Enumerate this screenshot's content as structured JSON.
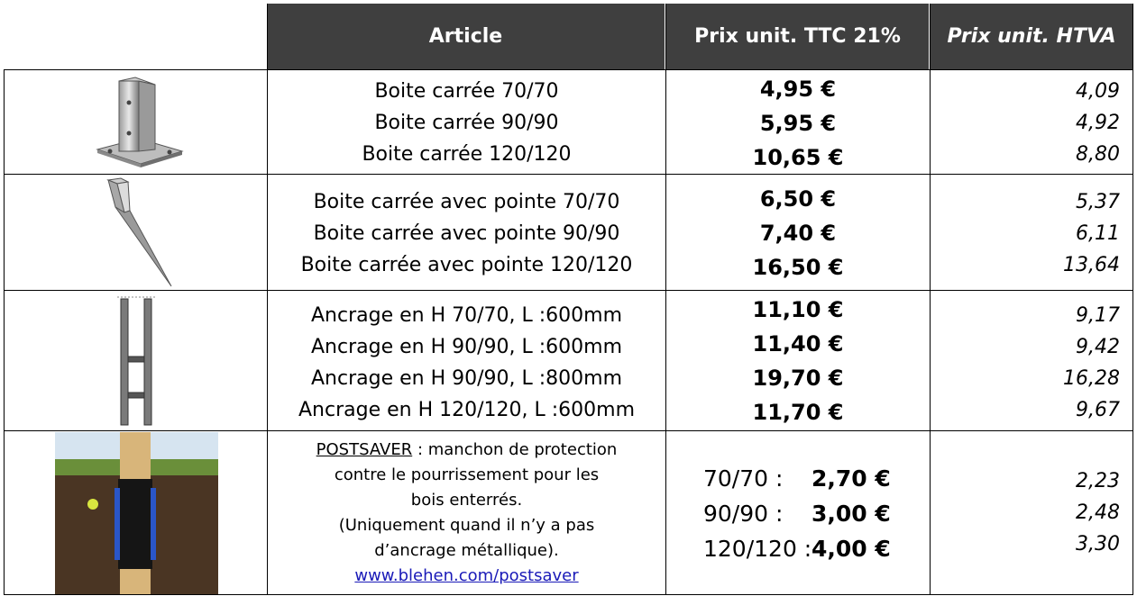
{
  "header": {
    "article": "Article",
    "prix_ttc": "Prix unit. TTC 21%",
    "prix_htva": "Prix unit. HTVA"
  },
  "groups": [
    {
      "image": "square-post-base-icon",
      "rows": [
        {
          "article": "Boite carrée 70/70",
          "ttc": "4,95 €",
          "htva": "4,09"
        },
        {
          "article": "Boite carrée 90/90",
          "ttc": "5,95 €",
          "htva": "4,92"
        },
        {
          "article": "Boite carrée 120/120",
          "ttc": "10,65 €",
          "htva": "8,80"
        }
      ]
    },
    {
      "image": "spike-post-anchor-icon",
      "rows": [
        {
          "article": "Boite carrée avec pointe 70/70",
          "ttc": "6,50 €",
          "htva": "5,37"
        },
        {
          "article": "Boite carrée avec pointe 90/90",
          "ttc": "7,40 €",
          "htva": "6,11"
        },
        {
          "article": "Boite carrée avec pointe 120/120",
          "ttc": "16,50 €",
          "htva": "13,64"
        }
      ]
    },
    {
      "image": "h-anchor-icon",
      "rows": [
        {
          "article": "Ancrage en H 70/70, L :600mm",
          "ttc": "11,10 €",
          "htva": "9,17"
        },
        {
          "article": "Ancrage en H 90/90, L :600mm",
          "ttc": "11,40 €",
          "htva": "9,42"
        },
        {
          "article": "Ancrage en H 90/90, L :800mm",
          "ttc": "19,70 €",
          "htva": "16,28"
        },
        {
          "article": "Ancrage en H 120/120, L :600mm",
          "ttc": "11,70 €",
          "htva": "9,67"
        }
      ]
    }
  ],
  "postsaver": {
    "image": "postsaver-photo-icon",
    "name": "POSTSAVER",
    "line1_rest": " : manchon de protection",
    "line2": "contre le pourrissement pour les",
    "line3": "bois enterrés.",
    "line4": "(Uniquement quand il n’y a pas",
    "line5": "d’ancrage métallique).",
    "link": "www.blehen.com/postsaver",
    "sizes": [
      {
        "size": "70/70 :",
        "ttc": "2,70 €",
        "htva": "2,23"
      },
      {
        "size": "90/90 :",
        "ttc": "3,00 €",
        "htva": "2,48"
      },
      {
        "size": "120/120 :",
        "ttc": "4,00 €",
        "htva": "3,30"
      }
    ]
  },
  "colors": {
    "header_bg": "#3f3f3f",
    "header_text": "#ffffff",
    "link": "#1a1ab8"
  }
}
